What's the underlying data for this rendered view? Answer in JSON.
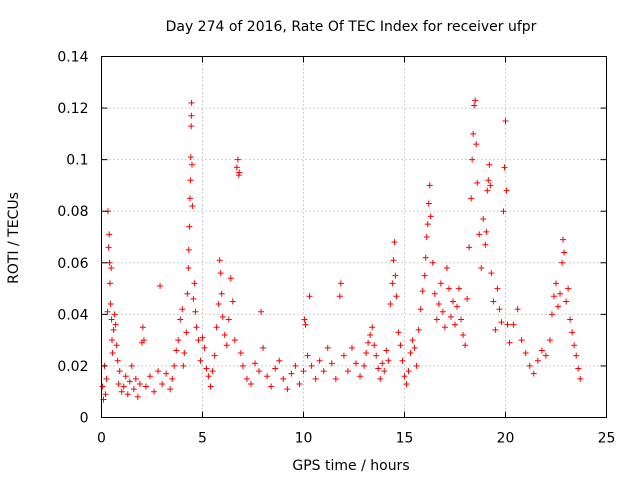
{
  "chart_data": {
    "type": "scatter",
    "title": "Day 274 of 2016, Rate Of TEC Index for receiver ufpr",
    "xlabel": "GPS time / hours",
    "ylabel": "ROTI / TECUs",
    "xlim": [
      0,
      25
    ],
    "ylim": [
      0,
      0.14
    ],
    "xticks": [
      0,
      5,
      10,
      15,
      20,
      25
    ],
    "xtick_labels": [
      "0",
      "5",
      "10",
      "15",
      "20",
      "25"
    ],
    "yticks": [
      0,
      0.02,
      0.04,
      0.06,
      0.08,
      0.1,
      0.12,
      0.14
    ],
    "ytick_labels": [
      "0",
      "0.02",
      "0.04",
      "0.06",
      "0.08",
      "0.1",
      "0.12",
      "0.14"
    ],
    "grid": true,
    "marker": "+",
    "series": [
      {
        "name": "ROTI",
        "color": "#ff0000",
        "points": [
          [
            0.05,
            0.012
          ],
          [
            0.1,
            0.007
          ],
          [
            0.15,
            0.02
          ],
          [
            0.2,
            0.009
          ],
          [
            0.25,
            0.015
          ],
          [
            0.3,
            0.041
          ],
          [
            0.32,
            0.08
          ],
          [
            0.35,
            0.066
          ],
          [
            0.38,
            0.071
          ],
          [
            0.4,
            0.06
          ],
          [
            0.42,
            0.052
          ],
          [
            0.45,
            0.044
          ],
          [
            0.48,
            0.058
          ],
          [
            0.5,
            0.038
          ],
          [
            0.52,
            0.03
          ],
          [
            0.55,
            0.025
          ],
          [
            0.6,
            0.034
          ],
          [
            0.65,
            0.04
          ],
          [
            0.7,
            0.036
          ],
          [
            0.75,
            0.028
          ],
          [
            0.8,
            0.022
          ],
          [
            0.85,
            0.013
          ],
          [
            0.9,
            0.018
          ],
          [
            1.0,
            0.01
          ],
          [
            1.1,
            0.012
          ],
          [
            1.2,
            0.016
          ],
          [
            1.3,
            0.009
          ],
          [
            1.4,
            0.014
          ],
          [
            1.5,
            0.02
          ],
          [
            1.6,
            0.011
          ],
          [
            1.7,
            0.015
          ],
          [
            1.8,
            0.008
          ],
          [
            1.9,
            0.013
          ],
          [
            2.0,
            0.029
          ],
          [
            2.05,
            0.035
          ],
          [
            2.1,
            0.03
          ],
          [
            2.2,
            0.012
          ],
          [
            2.4,
            0.016
          ],
          [
            2.6,
            0.01
          ],
          [
            2.8,
            0.018
          ],
          [
            2.9,
            0.051
          ],
          [
            3.0,
            0.013
          ],
          [
            3.2,
            0.017
          ],
          [
            3.4,
            0.011
          ],
          [
            3.5,
            0.015
          ],
          [
            3.6,
            0.02
          ],
          [
            3.7,
            0.026
          ],
          [
            3.8,
            0.03
          ],
          [
            3.9,
            0.038
          ],
          [
            4.0,
            0.042
          ],
          [
            4.05,
            0.02
          ],
          [
            4.1,
            0.025
          ],
          [
            4.2,
            0.033
          ],
          [
            4.25,
            0.048
          ],
          [
            4.3,
            0.058
          ],
          [
            4.32,
            0.065
          ],
          [
            4.35,
            0.074
          ],
          [
            4.38,
            0.085
          ],
          [
            4.4,
            0.092
          ],
          [
            4.42,
            0.101
          ],
          [
            4.44,
            0.113
          ],
          [
            4.45,
            0.117
          ],
          [
            4.46,
            0.122
          ],
          [
            4.48,
            0.098
          ],
          [
            4.5,
            0.082
          ],
          [
            4.55,
            0.046
          ],
          [
            4.6,
            0.052
          ],
          [
            4.65,
            0.041
          ],
          [
            4.7,
            0.035
          ],
          [
            4.8,
            0.03
          ],
          [
            4.9,
            0.022
          ],
          [
            5.0,
            0.031
          ],
          [
            5.1,
            0.027
          ],
          [
            5.2,
            0.019
          ],
          [
            5.3,
            0.016
          ],
          [
            5.4,
            0.012
          ],
          [
            5.5,
            0.018
          ],
          [
            5.6,
            0.024
          ],
          [
            5.7,
            0.035
          ],
          [
            5.8,
            0.044
          ],
          [
            5.85,
            0.061
          ],
          [
            5.9,
            0.056
          ],
          [
            5.95,
            0.048
          ],
          [
            6.0,
            0.039
          ],
          [
            6.1,
            0.032
          ],
          [
            6.2,
            0.028
          ],
          [
            6.3,
            0.038
          ],
          [
            6.4,
            0.054
          ],
          [
            6.5,
            0.045
          ],
          [
            6.6,
            0.03
          ],
          [
            6.7,
            0.097
          ],
          [
            6.75,
            0.1
          ],
          [
            6.8,
            0.094
          ],
          [
            6.82,
            0.095
          ],
          [
            6.9,
            0.025
          ],
          [
            7.0,
            0.02
          ],
          [
            7.2,
            0.015
          ],
          [
            7.4,
            0.013
          ],
          [
            7.6,
            0.021
          ],
          [
            7.8,
            0.018
          ],
          [
            7.9,
            0.041
          ],
          [
            8.0,
            0.027
          ],
          [
            8.2,
            0.016
          ],
          [
            8.4,
            0.012
          ],
          [
            8.6,
            0.019
          ],
          [
            8.8,
            0.022
          ],
          [
            9.0,
            0.015
          ],
          [
            9.2,
            0.011
          ],
          [
            9.4,
            0.017
          ],
          [
            9.6,
            0.02
          ],
          [
            9.8,
            0.013
          ],
          [
            10.0,
            0.018
          ],
          [
            10.05,
            0.038
          ],
          [
            10.1,
            0.036
          ],
          [
            10.2,
            0.024
          ],
          [
            10.3,
            0.047
          ],
          [
            10.4,
            0.02
          ],
          [
            10.6,
            0.015
          ],
          [
            10.8,
            0.022
          ],
          [
            11.0,
            0.018
          ],
          [
            11.2,
            0.027
          ],
          [
            11.4,
            0.021
          ],
          [
            11.6,
            0.015
          ],
          [
            11.8,
            0.047
          ],
          [
            11.85,
            0.052
          ],
          [
            12.0,
            0.024
          ],
          [
            12.2,
            0.018
          ],
          [
            12.4,
            0.027
          ],
          [
            12.6,
            0.021
          ],
          [
            12.8,
            0.016
          ],
          [
            13.0,
            0.02
          ],
          [
            13.1,
            0.025
          ],
          [
            13.2,
            0.029
          ],
          [
            13.3,
            0.032
          ],
          [
            13.4,
            0.035
          ],
          [
            13.5,
            0.028
          ],
          [
            13.6,
            0.024
          ],
          [
            13.7,
            0.019
          ],
          [
            13.8,
            0.015
          ],
          [
            13.9,
            0.021
          ],
          [
            14.0,
            0.018
          ],
          [
            14.1,
            0.026
          ],
          [
            14.2,
            0.022
          ],
          [
            14.3,
            0.044
          ],
          [
            14.4,
            0.052
          ],
          [
            14.45,
            0.061
          ],
          [
            14.5,
            0.068
          ],
          [
            14.55,
            0.055
          ],
          [
            14.6,
            0.047
          ],
          [
            14.7,
            0.033
          ],
          [
            14.8,
            0.028
          ],
          [
            14.9,
            0.022
          ],
          [
            15.0,
            0.016
          ],
          [
            15.1,
            0.013
          ],
          [
            15.2,
            0.018
          ],
          [
            15.3,
            0.025
          ],
          [
            15.4,
            0.03
          ],
          [
            15.5,
            0.027
          ],
          [
            15.6,
            0.02
          ],
          [
            15.7,
            0.034
          ],
          [
            15.8,
            0.042
          ],
          [
            15.9,
            0.049
          ],
          [
            16.0,
            0.055
          ],
          [
            16.05,
            0.062
          ],
          [
            16.1,
            0.07
          ],
          [
            16.15,
            0.075
          ],
          [
            16.2,
            0.083
          ],
          [
            16.25,
            0.09
          ],
          [
            16.3,
            0.078
          ],
          [
            16.4,
            0.06
          ],
          [
            16.5,
            0.048
          ],
          [
            16.6,
            0.038
          ],
          [
            16.7,
            0.044
          ],
          [
            16.8,
            0.052
          ],
          [
            16.9,
            0.041
          ],
          [
            17.0,
            0.035
          ],
          [
            17.1,
            0.058
          ],
          [
            17.2,
            0.05
          ],
          [
            17.3,
            0.039
          ],
          [
            17.4,
            0.045
          ],
          [
            17.5,
            0.036
          ],
          [
            17.6,
            0.043
          ],
          [
            17.7,
            0.05
          ],
          [
            17.8,
            0.038
          ],
          [
            17.9,
            0.032
          ],
          [
            18.0,
            0.028
          ],
          [
            18.1,
            0.046
          ],
          [
            18.2,
            0.066
          ],
          [
            18.3,
            0.085
          ],
          [
            18.35,
            0.1
          ],
          [
            18.4,
            0.11
          ],
          [
            18.45,
            0.121
          ],
          [
            18.5,
            0.123
          ],
          [
            18.55,
            0.106
          ],
          [
            18.6,
            0.091
          ],
          [
            18.7,
            0.071
          ],
          [
            18.8,
            0.058
          ],
          [
            18.9,
            0.077
          ],
          [
            19.0,
            0.067
          ],
          [
            19.05,
            0.072
          ],
          [
            19.1,
            0.088
          ],
          [
            19.15,
            0.092
          ],
          [
            19.2,
            0.098
          ],
          [
            19.25,
            0.09
          ],
          [
            19.3,
            0.056
          ],
          [
            19.4,
            0.045
          ],
          [
            19.5,
            0.034
          ],
          [
            19.6,
            0.05
          ],
          [
            19.7,
            0.042
          ],
          [
            19.8,
            0.037
          ],
          [
            19.9,
            0.08
          ],
          [
            19.95,
            0.097
          ],
          [
            20.0,
            0.115
          ],
          [
            20.05,
            0.088
          ],
          [
            20.1,
            0.036
          ],
          [
            20.2,
            0.029
          ],
          [
            20.4,
            0.036
          ],
          [
            20.6,
            0.042
          ],
          [
            20.8,
            0.03
          ],
          [
            21.0,
            0.025
          ],
          [
            21.2,
            0.02
          ],
          [
            21.4,
            0.017
          ],
          [
            21.6,
            0.022
          ],
          [
            21.8,
            0.026
          ],
          [
            22.0,
            0.024
          ],
          [
            22.2,
            0.03
          ],
          [
            22.3,
            0.04
          ],
          [
            22.4,
            0.047
          ],
          [
            22.5,
            0.052
          ],
          [
            22.6,
            0.043
          ],
          [
            22.7,
            0.048
          ],
          [
            22.8,
            0.06
          ],
          [
            22.85,
            0.069
          ],
          [
            22.9,
            0.064
          ],
          [
            23.0,
            0.045
          ],
          [
            23.1,
            0.05
          ],
          [
            23.2,
            0.038
          ],
          [
            23.3,
            0.033
          ],
          [
            23.4,
            0.028
          ],
          [
            23.5,
            0.024
          ],
          [
            23.6,
            0.019
          ],
          [
            23.7,
            0.015
          ]
        ]
      }
    ]
  }
}
